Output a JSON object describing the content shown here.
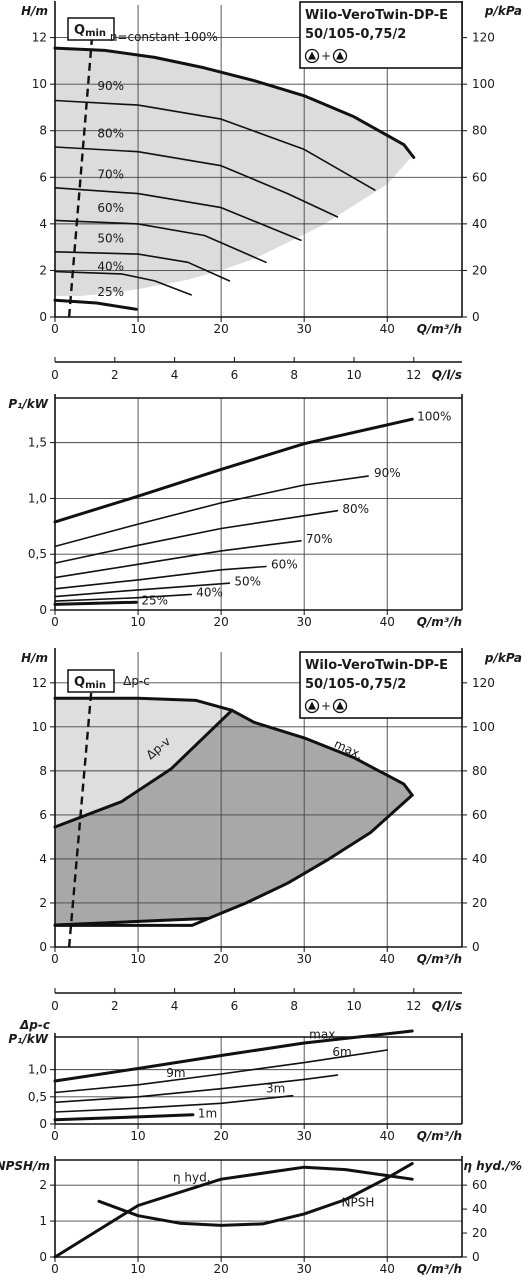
{
  "chart_data": [
    {
      "id": "hq1",
      "type": "line",
      "title_lines": [
        "Wilo-VeroTwin-DP-E",
        "50/105-0,75/2"
      ],
      "title_symbol": "▲+▲",
      "ylabel_left": "H/m",
      "ylabel_right": "p/kPa",
      "xlabel": "Q/m³/h",
      "xlabel2": "Q/l/s",
      "xlim": [
        0,
        49
      ],
      "ylim": [
        0,
        13.4
      ],
      "y2lim": [
        0,
        134
      ],
      "xticks": [
        0,
        10,
        20,
        30,
        40
      ],
      "yticks": [
        0,
        2,
        4,
        6,
        8,
        10,
        12
      ],
      "y2ticks": [
        0,
        20,
        40,
        60,
        80,
        100,
        120
      ],
      "x2ticks": [
        0,
        2,
        4,
        6,
        8,
        10,
        12
      ],
      "qmin_label": "Q",
      "qmin_sub": "min",
      "qmin_line": {
        "x": [
          1.7,
          4.5
        ],
        "y": [
          0,
          12.2
        ]
      },
      "operating_region": {
        "x": [
          0,
          6,
          12,
          18,
          24,
          30,
          36,
          42,
          43,
          40,
          36,
          32,
          28,
          24,
          20,
          16,
          10,
          6,
          3,
          0
        ],
        "y": [
          11.5,
          11.4,
          11.1,
          10.7,
          10.2,
          9.5,
          8.6,
          7.4,
          6.9,
          5.7,
          4.8,
          3.9,
          3.2,
          2.5,
          2.0,
          1.6,
          1.2,
          1.0,
          0.9,
          0.9
        ]
      },
      "grid": true,
      "series": [
        {
          "name": "n=constant 100%",
          "x": [
            0,
            6,
            12,
            18,
            24,
            30,
            36,
            42,
            43.2
          ],
          "y": [
            11.55,
            11.45,
            11.15,
            10.7,
            10.15,
            9.5,
            8.6,
            7.4,
            6.85
          ],
          "bold": true
        },
        {
          "name": "90%",
          "x": [
            0,
            10,
            20,
            30,
            38.5
          ],
          "y": [
            9.3,
            9.1,
            8.5,
            7.2,
            5.45
          ]
        },
        {
          "name": "80%",
          "x": [
            0,
            10,
            20,
            28,
            34
          ],
          "y": [
            7.3,
            7.1,
            6.5,
            5.3,
            4.3
          ]
        },
        {
          "name": "70%",
          "x": [
            0,
            10,
            20,
            29.6
          ],
          "y": [
            5.55,
            5.3,
            4.7,
            3.3
          ]
        },
        {
          "name": "60%",
          "x": [
            0,
            10,
            18,
            25.4
          ],
          "y": [
            4.15,
            4.0,
            3.5,
            2.35
          ]
        },
        {
          "name": "50%",
          "x": [
            0,
            10,
            16,
            21
          ],
          "y": [
            2.8,
            2.7,
            2.35,
            1.55
          ]
        },
        {
          "name": "40%",
          "x": [
            0,
            8,
            12,
            16.4
          ],
          "y": [
            1.95,
            1.85,
            1.55,
            0.95
          ]
        },
        {
          "name": "25%",
          "x": [
            0,
            5,
            9.8
          ],
          "y": [
            0.72,
            0.6,
            0.33
          ],
          "bold": true
        }
      ],
      "labels": [
        {
          "text": "n=constant 100%",
          "x": 6.6,
          "y": 11.85
        },
        {
          "text": "90%",
          "x": 5.1,
          "y": 9.75
        },
        {
          "text": "80%",
          "x": 5.1,
          "y": 7.7
        },
        {
          "text": "70%",
          "x": 5.1,
          "y": 5.95
        },
        {
          "text": "60%",
          "x": 5.1,
          "y": 4.5
        },
        {
          "text": "50%",
          "x": 5.1,
          "y": 3.2
        },
        {
          "text": "40%",
          "x": 5.1,
          "y": 2.0
        },
        {
          "text": "25%",
          "x": 5.1,
          "y": 0.9
        }
      ]
    },
    {
      "id": "p1",
      "type": "line",
      "ylabel_left": "P₁/kW",
      "xlabel": "Q/m³/h",
      "xlim": [
        0,
        49
      ],
      "ylim": [
        0,
        1.9
      ],
      "xticks": [
        0,
        10,
        20,
        30,
        40
      ],
      "yticks": [
        0,
        0.5,
        1.0,
        1.5
      ],
      "ytick_labels": [
        "0",
        "0,5",
        "1,0",
        "1,5"
      ],
      "grid": true,
      "series": [
        {
          "name": "100%",
          "x": [
            0,
            10,
            20,
            30,
            43
          ],
          "y": [
            0.79,
            1.02,
            1.26,
            1.49,
            1.71
          ],
          "bold": true
        },
        {
          "name": "90%",
          "x": [
            0,
            10,
            20,
            30,
            37.7
          ],
          "y": [
            0.57,
            0.77,
            0.96,
            1.12,
            1.2
          ]
        },
        {
          "name": "80%",
          "x": [
            0,
            10,
            20,
            34
          ],
          "y": [
            0.42,
            0.58,
            0.73,
            0.89
          ]
        },
        {
          "name": "70%",
          "x": [
            0,
            10,
            20,
            29.6
          ],
          "y": [
            0.29,
            0.41,
            0.53,
            0.62
          ]
        },
        {
          "name": "60%",
          "x": [
            0,
            10,
            20,
            25.4
          ],
          "y": [
            0.19,
            0.27,
            0.36,
            0.39
          ]
        },
        {
          "name": "50%",
          "x": [
            0,
            10,
            21
          ],
          "y": [
            0.12,
            0.18,
            0.24
          ]
        },
        {
          "name": "40%",
          "x": [
            0,
            10,
            16.4
          ],
          "y": [
            0.08,
            0.11,
            0.14
          ]
        },
        {
          "name": "25%",
          "x": [
            0,
            9.8
          ],
          "y": [
            0.05,
            0.07
          ],
          "bold": true
        }
      ],
      "labels": [
        {
          "text": "100%",
          "x": 43.6,
          "y": 1.7
        },
        {
          "text": "90%",
          "x": 38.4,
          "y": 1.19
        },
        {
          "text": "80%",
          "x": 34.6,
          "y": 0.87
        },
        {
          "text": "70%",
          "x": 30.2,
          "y": 0.6
        },
        {
          "text": "60%",
          "x": 26.0,
          "y": 0.37
        },
        {
          "text": "50%",
          "x": 21.6,
          "y": 0.22
        },
        {
          "text": "40%",
          "x": 17.0,
          "y": 0.12
        },
        {
          "text": "25%",
          "x": 10.4,
          "y": 0.05
        }
      ]
    },
    {
      "id": "hq2",
      "type": "area",
      "title_lines": [
        "Wilo-VeroTwin-DP-E",
        "50/105-0,75/2"
      ],
      "title_symbol": "▲+▲",
      "ylabel_left": "H/m",
      "ylabel_right": "p/kPa",
      "xlabel": "Q/m³/h",
      "xlabel2": "Q/l/s",
      "xlim": [
        0,
        49
      ],
      "ylim": [
        0,
        13.4
      ],
      "y2lim": [
        0,
        134
      ],
      "xticks": [
        0,
        10,
        20,
        30,
        40
      ],
      "yticks": [
        0,
        2,
        4,
        6,
        8,
        10,
        12
      ],
      "y2ticks": [
        0,
        20,
        40,
        60,
        80,
        100,
        120
      ],
      "x2ticks": [
        0,
        2,
        4,
        6,
        8,
        10,
        12
      ],
      "qmin_label": "Q",
      "qmin_sub": "min",
      "qmin_line": {
        "x": [
          1.7,
          4.5
        ],
        "y": [
          0,
          12.2
        ]
      },
      "grid": true,
      "light_region": {
        "x": [
          0,
          10,
          17,
          21,
          24,
          30,
          36,
          42,
          43,
          22,
          10,
          0
        ],
        "y": [
          11.3,
          11.3,
          11.2,
          10.75,
          10.2,
          9.5,
          8.6,
          7.4,
          6.9,
          8.6,
          7.0,
          5.45
        ]
      },
      "dark_region": {
        "x": [
          0,
          8,
          14,
          21.3,
          24,
          30,
          36,
          42,
          43,
          38,
          33,
          28,
          23,
          18.5,
          14,
          6,
          0
        ],
        "y": [
          5.45,
          6.6,
          8.1,
          10.75,
          10.2,
          9.5,
          8.6,
          7.4,
          6.9,
          5.2,
          4.0,
          2.9,
          2.0,
          1.3,
          1.25,
          1.1,
          1.05
        ]
      },
      "series": [
        {
          "name": "Δp-c",
          "x": [
            0,
            10,
            17,
            21.3
          ],
          "y": [
            11.3,
            11.3,
            11.2,
            10.75
          ],
          "bold": true
        },
        {
          "name": "Δp-v",
          "x": [
            0,
            8,
            14,
            21.3
          ],
          "y": [
            5.45,
            6.6,
            8.1,
            10.75
          ],
          "bold": true
        },
        {
          "name": "max.",
          "x": [
            21.3,
            24,
            30,
            36,
            42,
            43
          ],
          "y": [
            10.75,
            10.2,
            9.5,
            8.6,
            7.4,
            6.9
          ],
          "bold": true
        },
        {
          "name": "",
          "x": [
            43,
            38,
            33,
            28,
            23,
            18.5,
            0
          ],
          "y": [
            6.9,
            5.2,
            4.0,
            2.9,
            2.0,
            1.3,
            1.0
          ],
          "bold": true
        },
        {
          "name": "",
          "x": [
            0,
            16.5,
            18.5
          ],
          "y": [
            0.98,
            0.98,
            1.3
          ],
          "bold": true
        }
      ],
      "labels": [
        {
          "text": "Δp-c",
          "x": 8.2,
          "y": 11.9
        },
        {
          "text": "Δp-v",
          "x": 11.5,
          "y": 8.5,
          "rotate": -40
        },
        {
          "text": "max.",
          "x": 33.5,
          "y": 9.1,
          "rotate": 25
        }
      ]
    },
    {
      "id": "p2",
      "type": "line",
      "ylabel_left": "P₁/kW",
      "ylabel_top": "Δp-c",
      "xlabel": "Q/m³/h",
      "xlim": [
        0,
        49
      ],
      "ylim": [
        0,
        1.6
      ],
      "xticks": [
        0,
        10,
        20,
        30,
        40
      ],
      "yticks": [
        0,
        0.5,
        1.0
      ],
      "ytick_labels": [
        "0",
        "0,5",
        "1,0"
      ],
      "grid": true,
      "series": [
        {
          "name": "max.",
          "x": [
            0,
            10,
            20,
            30,
            43
          ],
          "y": [
            0.79,
            1.02,
            1.26,
            1.49,
            1.71
          ],
          "bold": true
        },
        {
          "name": "9m",
          "x": [
            0,
            10,
            20,
            30,
            40
          ],
          "y": [
            0.58,
            0.72,
            0.92,
            1.13,
            1.36
          ]
        },
        {
          "name": "6m",
          "x": [
            0,
            10,
            20,
            30,
            34
          ],
          "y": [
            0.4,
            0.5,
            0.65,
            0.82,
            0.9
          ]
        },
        {
          "name": "3m",
          "x": [
            0,
            10,
            20,
            28.6
          ],
          "y": [
            0.22,
            0.29,
            0.38,
            0.52
          ]
        },
        {
          "name": "1m",
          "x": [
            0,
            10,
            16.6
          ],
          "y": [
            0.08,
            0.13,
            0.17
          ],
          "bold": true
        }
      ],
      "labels": [
        {
          "text": "max.",
          "x": 30.6,
          "y": 1.57
        },
        {
          "text": "6m",
          "x": 33.4,
          "y": 1.25
        },
        {
          "text": "9m",
          "x": 13.4,
          "y": 0.86
        },
        {
          "text": "3m",
          "x": 25.4,
          "y": 0.58
        },
        {
          "text": "1m",
          "x": 17.2,
          "y": 0.12
        }
      ]
    },
    {
      "id": "npsh",
      "type": "line",
      "ylabel_left": "NPSH/m",
      "ylabel_right": "η hyd./%",
      "xlabel": "Q/m³/h",
      "xlim": [
        0,
        49
      ],
      "ylim": [
        0,
        2.7
      ],
      "y2lim": [
        0,
        81
      ],
      "xticks": [
        0,
        10,
        20,
        30,
        40
      ],
      "yticks": [
        0,
        1,
        2
      ],
      "y2ticks": [
        0,
        20,
        40,
        60
      ],
      "grid": true,
      "series": [
        {
          "name": "η hyd.",
          "axis": "right",
          "x": [
            0,
            10,
            20,
            30,
            35,
            43
          ],
          "y": [
            0,
            43,
            65,
            75,
            73,
            65
          ],
          "bold": true
        },
        {
          "name": "NPSH",
          "axis": "left",
          "x": [
            5.3,
            10,
            15,
            20,
            25,
            30,
            35,
            40,
            43
          ],
          "y": [
            1.55,
            1.15,
            0.94,
            0.88,
            0.92,
            1.2,
            1.6,
            2.2,
            2.6
          ],
          "bold": true
        }
      ],
      "labels": [
        {
          "text": "η hyd.",
          "x": 14.2,
          "y": 2.1
        },
        {
          "text": "NPSH",
          "x": 34.5,
          "y": 1.4
        }
      ]
    }
  ]
}
